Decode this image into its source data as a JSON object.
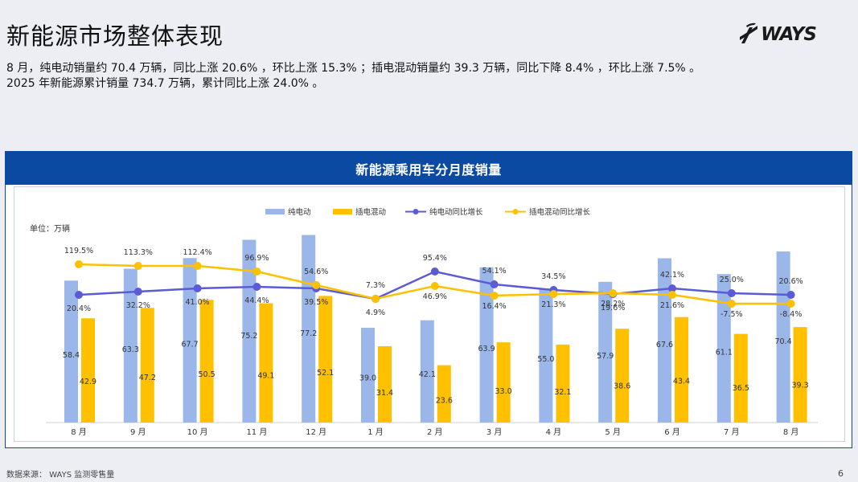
{
  "page": {
    "title": "新能源市场整体表现",
    "summary_line1": "8 月，纯电动销量约 70.4 万辆，同比上涨 20.6% ，环比上涨 15.3% ；插电混动销量约 39.3 万辆，同比下降 8.4% ，环比上涨 7.5% 。",
    "summary_line2": "2025 年新能源累计销量 734.7 万辆，累计同比上涨 24.0% 。",
    "source": "数据来源： WAYS 监测零售量",
    "page_number": "6",
    "logo_text": "WAYS"
  },
  "colors": {
    "header_bg": "#0b4aa2",
    "bev_bar": "#9bb7ea",
    "phev_bar": "#ffc000",
    "bev_line": "#5b5bd6",
    "phev_line": "#ffc000"
  },
  "chart_data": {
    "type": "bar+line",
    "title": "新能源乘用车分月度销量",
    "unit_label": "单位：万辆",
    "categories": [
      "8 月",
      "9 月",
      "10 月",
      "11 月",
      "12 月",
      "1 月",
      "2 月",
      "3 月",
      "4 月",
      "5 月",
      "6 月",
      "7 月",
      "8 月"
    ],
    "series": [
      {
        "name": "纯电动",
        "kind": "bar",
        "values": [
          58.4,
          63.3,
          67.7,
          75.2,
          77.2,
          39.0,
          42.1,
          63.9,
          55.0,
          57.9,
          67.6,
          61.1,
          70.4
        ]
      },
      {
        "name": "插电混动",
        "kind": "bar",
        "values": [
          42.9,
          47.2,
          50.5,
          49.1,
          52.1,
          31.4,
          23.6,
          33.0,
          32.1,
          38.6,
          43.4,
          36.5,
          39.3
        ]
      },
      {
        "name": "纯电动同比增长",
        "kind": "line",
        "values": [
          20.4,
          32.2,
          41.0,
          44.4,
          39.5,
          4.9,
          95.4,
          54.1,
          34.5,
          19.6,
          42.1,
          25.0,
          20.6
        ],
        "labels": [
          "20.4%",
          "32.2%",
          "41.0%",
          "44.4%",
          "39.5%",
          "4.9%",
          "95.4%",
          "54.1%",
          "34.5%",
          "19.6%",
          "42.1%",
          "25.0%",
          "20.6%"
        ]
      },
      {
        "name": "插电混动同比增长",
        "kind": "line",
        "values": [
          119.5,
          113.3,
          112.4,
          96.9,
          54.6,
          7.3,
          46.9,
          16.4,
          21.3,
          28.2,
          21.6,
          -7.5,
          -8.4
        ],
        "labels": [
          "119.5%",
          "113.3%",
          "112.4%",
          "96.9%",
          "54.6%",
          "7.3%",
          "46.9%",
          "16.4%",
          "21.3%",
          "28.2%",
          "21.6%",
          "-7.5%",
          "-8.4%"
        ]
      }
    ],
    "bar_axis": {
      "min": 0,
      "max": 80
    },
    "legend_position": "top-center"
  }
}
